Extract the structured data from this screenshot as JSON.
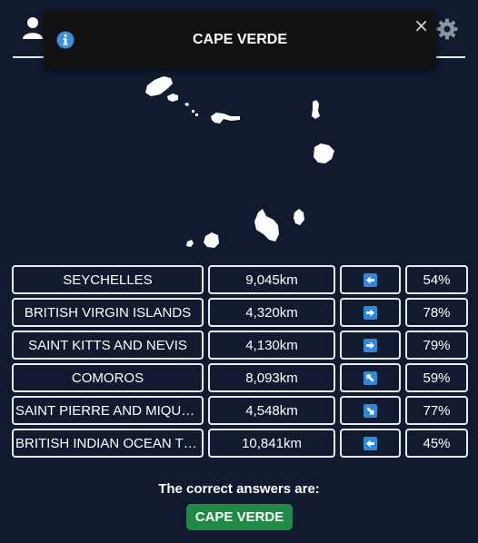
{
  "toast": {
    "title": "CAPE VERDE",
    "close_symbol": "×",
    "icon": "info-icon"
  },
  "header": {
    "user_icon": "user-icon",
    "settings_icon": "gear-icon"
  },
  "map": {
    "icon": "country-silhouette",
    "country": "Cape Verde"
  },
  "guesses": [
    {
      "name": "SEYCHELLES",
      "distance": "9,045km",
      "direction": "left",
      "percent": "54%"
    },
    {
      "name": "BRITISH VIRGIN ISLANDS",
      "distance": "4,320km",
      "direction": "right",
      "percent": "78%"
    },
    {
      "name": "SAINT KITTS AND NEVIS",
      "distance": "4,130km",
      "direction": "right",
      "percent": "79%"
    },
    {
      "name": "COMOROS",
      "distance": "8,093km",
      "direction": "up-left",
      "percent": "59%"
    },
    {
      "name": "SAINT PIERRE AND MIQUELON",
      "distance": "4,548km",
      "direction": "down-right",
      "percent": "77%"
    },
    {
      "name": "BRITISH INDIAN OCEAN TERRITORY",
      "distance": "10,841km",
      "direction": "left",
      "percent": "45%"
    }
  ],
  "result": {
    "label": "The correct answers are:",
    "answer": "CAPE VERDE"
  },
  "colors": {
    "background": "#111a2e",
    "toast_bg": "#121212",
    "accent_blue": "#2f89d8",
    "answer_green": "#1f8a44",
    "border": "#e6e9ef"
  }
}
